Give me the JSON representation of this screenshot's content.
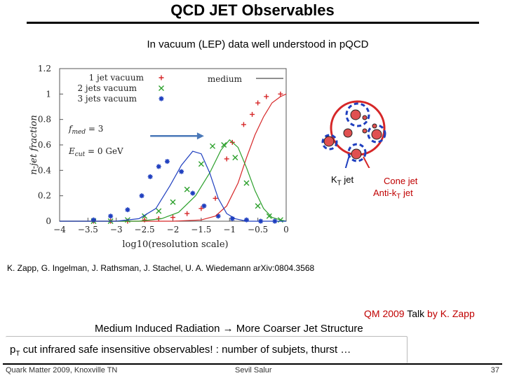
{
  "slide": {
    "title": "QCD JET Observables",
    "subtitle": "In vacuum (LEP) data well understood in pQCD",
    "citation": "K. Zapp, G. Ingelman, J. Rathsman, J. Stachel, U. A. Wiedemann arXiv:0804.3568",
    "talk_prefix": "QM 2009 ",
    "talk_mid": "Talk",
    "talk_suffix": " by K. Zapp",
    "medium_text": "Medium Induced Radiation → More Coarser Jet Structure",
    "pt_main": "p",
    "pt_sub": "T",
    "pt_rest": " cut infrared safe insensitive observables! :  number of subjets, thurst …",
    "kt_main": "K",
    "kt_sub": "T",
    "kt_rest": " jet",
    "cone_label": "Cone jet",
    "antikt_main": "Anti-k",
    "antikt_sub": "T",
    "antikt_rest": " jet"
  },
  "footer": {
    "left": "Quark Matter 2009, Knoxville TN",
    "center": "Sevil Salur",
    "page": "37"
  },
  "colors": {
    "series_1": "#d62728",
    "series_2": "#2ca02c",
    "series_3": "#1f3fbf",
    "arrow": "#4a78b8",
    "cone_circle": "#d62728",
    "kt_circles": "#1f3fbf",
    "accent_text": "#c00000"
  },
  "chart_data": {
    "type": "line",
    "ylabel": "n-jet fraction",
    "xlabel": "log10(resolution scale)",
    "xlim": [
      -4,
      0
    ],
    "ylim": [
      0,
      1.2
    ],
    "x_ticks": [
      -3.5,
      -3,
      -2.5,
      -2,
      -1.5,
      -1,
      -0.5,
      0
    ],
    "x_tick_labels": [
      "-3.5",
      "-3",
      "-2.5",
      "-2",
      "-1.5",
      "-1",
      "-0.5",
      "0"
    ],
    "y_ticks": [
      0,
      0.2,
      0.4,
      0.6,
      0.8,
      1,
      1.2
    ],
    "y_tick_labels": [
      "0",
      "0.2",
      "0.4",
      "0.6",
      "0.8",
      "1",
      "1.2"
    ],
    "x_tick_label_prefix": "−",
    "annotations": [
      {
        "text": "f_med = 3",
        "main": "f",
        "sub": "med",
        "rest": " = 3"
      },
      {
        "text": "E_cut = 0 GeV",
        "main": "E",
        "sub": "cut",
        "rest": " = 0 GeV"
      }
    ],
    "legend": {
      "placement": "top",
      "vacuum_entries": [
        "1 jet vacuum",
        "2 jets vacuum",
        "3 jets vacuum"
      ],
      "medium_entry": "medium"
    },
    "series": [
      {
        "name": "1 jet vacuum",
        "marker": "+",
        "points": [
          [
            -3.4,
            0
          ],
          [
            -3.1,
            0
          ],
          [
            -2.8,
            0
          ],
          [
            -2.5,
            0.01
          ],
          [
            -2.25,
            0.02
          ],
          [
            -2.0,
            0.03
          ],
          [
            -1.75,
            0.06
          ],
          [
            -1.5,
            0.1
          ],
          [
            -1.25,
            0.18
          ],
          [
            -1.05,
            0.49
          ],
          [
            -0.95,
            0.62
          ],
          [
            -0.75,
            0.76
          ],
          [
            -0.6,
            0.84
          ],
          [
            -0.5,
            0.93
          ],
          [
            -0.35,
            0.98
          ],
          [
            -0.1,
            1.0
          ]
        ]
      },
      {
        "name": "2 jets vacuum",
        "marker": "x",
        "points": [
          [
            -3.4,
            0
          ],
          [
            -3.1,
            0
          ],
          [
            -2.8,
            0.01
          ],
          [
            -2.5,
            0.04
          ],
          [
            -2.25,
            0.08
          ],
          [
            -2.0,
            0.15
          ],
          [
            -1.75,
            0.25
          ],
          [
            -1.5,
            0.45
          ],
          [
            -1.3,
            0.59
          ],
          [
            -1.1,
            0.6
          ],
          [
            -0.9,
            0.5
          ],
          [
            -0.7,
            0.3
          ],
          [
            -0.5,
            0.12
          ],
          [
            -0.3,
            0.04
          ],
          [
            -0.1,
            0.01
          ]
        ]
      },
      {
        "name": "3 jets vacuum",
        "marker": "*",
        "points": [
          [
            -3.4,
            0.01
          ],
          [
            -3.1,
            0.04
          ],
          [
            -2.8,
            0.09
          ],
          [
            -2.55,
            0.2
          ],
          [
            -2.4,
            0.35
          ],
          [
            -2.25,
            0.43
          ],
          [
            -2.1,
            0.47
          ],
          [
            -1.85,
            0.39
          ],
          [
            -1.65,
            0.22
          ],
          [
            -1.45,
            0.12
          ],
          [
            -1.2,
            0.04
          ],
          [
            -0.95,
            0.02
          ],
          [
            -0.7,
            0.01
          ],
          [
            -0.45,
            0
          ],
          [
            -0.2,
            0
          ]
        ]
      },
      {
        "name": "1 jet medium",
        "style": "line",
        "points": [
          [
            -4,
            0
          ],
          [
            -2,
            0
          ],
          [
            -1.5,
            0.01
          ],
          [
            -1.25,
            0.04
          ],
          [
            -1.05,
            0.12
          ],
          [
            -0.85,
            0.3
          ],
          [
            -0.7,
            0.5
          ],
          [
            -0.55,
            0.68
          ],
          [
            -0.4,
            0.82
          ],
          [
            -0.25,
            0.93
          ],
          [
            -0.1,
            0.98
          ],
          [
            0,
            1.0
          ]
        ]
      },
      {
        "name": "2 jets medium",
        "style": "line",
        "points": [
          [
            -4,
            0
          ],
          [
            -2.6,
            0
          ],
          [
            -2.2,
            0.02
          ],
          [
            -1.9,
            0.07
          ],
          [
            -1.6,
            0.2
          ],
          [
            -1.35,
            0.38
          ],
          [
            -1.15,
            0.56
          ],
          [
            -1.0,
            0.64
          ],
          [
            -0.85,
            0.58
          ],
          [
            -0.7,
            0.42
          ],
          [
            -0.55,
            0.24
          ],
          [
            -0.4,
            0.1
          ],
          [
            -0.25,
            0.03
          ],
          [
            -0.1,
            0.01
          ],
          [
            0,
            0
          ]
        ]
      },
      {
        "name": "3 jets medium",
        "style": "line",
        "points": [
          [
            -4,
            0
          ],
          [
            -3.0,
            0
          ],
          [
            -2.6,
            0.02
          ],
          [
            -2.3,
            0.1
          ],
          [
            -2.05,
            0.28
          ],
          [
            -1.85,
            0.44
          ],
          [
            -1.65,
            0.55
          ],
          [
            -1.5,
            0.53
          ],
          [
            -1.35,
            0.38
          ],
          [
            -1.2,
            0.18
          ],
          [
            -1.05,
            0.06
          ],
          [
            -0.9,
            0.02
          ],
          [
            -0.7,
            0
          ],
          [
            0,
            0
          ]
        ]
      }
    ],
    "shift_arrow": {
      "from": [
        -2.4,
        0.67
      ],
      "to": [
        -1.45,
        0.67
      ]
    }
  }
}
